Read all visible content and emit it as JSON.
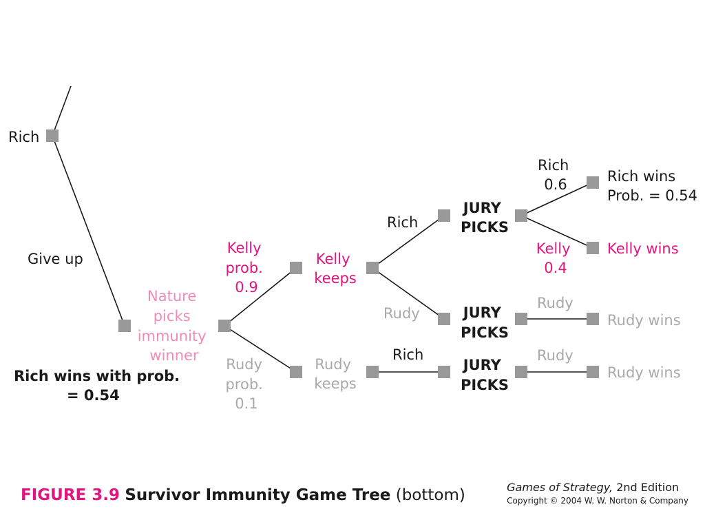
{
  "diagram": {
    "nodes": {
      "n_rich": "Rich",
      "n_giveup": "Give up",
      "n_result": [
        "Rich wins with prob.",
        "= 0.54"
      ],
      "n_nature": [
        "Nature",
        "picks",
        "immunity",
        "winner"
      ],
      "n_kelly_prob": [
        "Kelly",
        "prob.",
        "0.9"
      ],
      "n_rudy_prob": [
        "Rudy",
        "prob.",
        "0.1"
      ],
      "n_kelly_keeps": [
        "Kelly",
        "keeps"
      ],
      "n_rudy_keeps": [
        "Rudy",
        "keeps"
      ],
      "n_rich_a": "Rich",
      "n_rudy_a": "Rudy",
      "n_rich_b": "Rich",
      "n_jury1": [
        "JURY",
        "PICKS"
      ],
      "n_jury2": [
        "JURY",
        "PICKS"
      ],
      "n_jury3": [
        "JURY",
        "PICKS"
      ],
      "n_rich06": [
        "Rich",
        "0.6"
      ],
      "n_kelly04": [
        "Kelly",
        "0.4"
      ],
      "n_rudy_c": "Rudy",
      "n_rudy_d": "Rudy",
      "n_outcome1": [
        "Rich wins",
        "Prob. = 0.54"
      ],
      "n_outcome2": "Kelly wins",
      "n_outcome3": "Rudy wins",
      "n_outcome4": "Rudy wins"
    }
  },
  "caption": {
    "figure": "FIGURE 3.9",
    "title": "Survivor Immunity Game Tree",
    "suffix": "(bottom)"
  },
  "credit": {
    "book": "Games of Strategy,",
    "edition": "2nd Edition",
    "copyright": "Copyright © 2004 W. W. Norton & Company"
  },
  "colors": {
    "accent": "#e0157f",
    "pink": "#f08bb8",
    "gray": "#a9a9a9",
    "node": "#999999",
    "text": "#1a1a1a"
  }
}
